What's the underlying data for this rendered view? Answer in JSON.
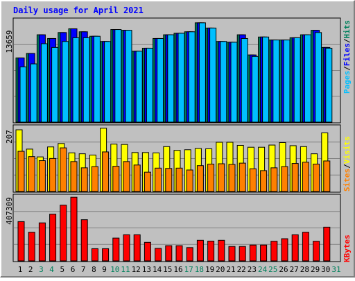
{
  "chart_data": [
    {
      "type": "bar",
      "panel": "hits-files-pages",
      "title": "Daily usage for April 2021",
      "y_max_label": "13659",
      "ylim": [
        0,
        13659
      ],
      "grid": true,
      "days": [
        "1",
        "2",
        "3",
        "4",
        "5",
        "6",
        "7",
        "8",
        "9",
        "10",
        "11",
        "12",
        "13",
        "14",
        "15",
        "16",
        "17",
        "18",
        "19",
        "20",
        "21",
        "22",
        "23",
        "24",
        "25",
        "26",
        "27",
        "28",
        "29",
        "30",
        "31"
      ],
      "weekend_days": [
        "3",
        "4",
        "10",
        "11",
        "17",
        "18",
        "24",
        "25",
        "31"
      ],
      "series": [
        {
          "name": "Hits",
          "color": "#00805c",
          "values": [
            8600,
            9200,
            11700,
            11200,
            12000,
            12500,
            12100,
            11500,
            10800,
            12400,
            12300,
            9500,
            9900,
            11200,
            11700,
            11900,
            12100,
            13300,
            12600,
            10800,
            10700,
            11700,
            9000,
            11400,
            11000,
            11000,
            11300,
            11700,
            12300,
            10000,
            0
          ]
        },
        {
          "name": "Files",
          "color": "#0000ff",
          "values": [
            8600,
            9200,
            11700,
            11200,
            12000,
            12500,
            12100,
            11500,
            10800,
            12400,
            12300,
            9500,
            9900,
            11200,
            11700,
            11900,
            12100,
            13300,
            12600,
            10800,
            10700,
            11700,
            9000,
            11400,
            11000,
            11000,
            11300,
            11700,
            12300,
            10000,
            0
          ]
        },
        {
          "name": "Pages",
          "color": "#00bfff",
          "values": [
            7400,
            7800,
            10500,
            10000,
            10800,
            11300,
            11300,
            11500,
            10800,
            12400,
            12300,
            9500,
            9900,
            11200,
            11700,
            11900,
            12100,
            13300,
            12600,
            10800,
            10700,
            11200,
            8800,
            11400,
            11000,
            11000,
            11300,
            11700,
            12000,
            9900,
            0
          ]
        }
      ],
      "legend": [
        "Pages",
        "Files",
        "Hits"
      ]
    },
    {
      "type": "bar",
      "panel": "visits-sites",
      "y_max_label": "207",
      "ylim": [
        0,
        207
      ],
      "grid": true,
      "series": [
        {
          "name": "Visits",
          "color": "#ffff00",
          "values": [
            198,
            136,
            111,
            143,
            154,
            124,
            121,
            117,
            203,
            152,
            151,
            125,
            125,
            124,
            144,
            132,
            134,
            138,
            137,
            158,
            158,
            148,
            142,
            142,
            149,
            157,
            147,
            144,
            121,
            188,
            0
          ]
        },
        {
          "name": "Sites",
          "color": "#ff8000",
          "values": [
            129,
            112,
            99,
            106,
            140,
            96,
            76,
            80,
            127,
            81,
            96,
            85,
            62,
            75,
            74,
            75,
            69,
            83,
            88,
            89,
            87,
            91,
            73,
            67,
            76,
            80,
            90,
            94,
            88,
            98,
            0
          ]
        }
      ],
      "legend": [
        "Sites",
        "Visits"
      ]
    },
    {
      "type": "bar",
      "panel": "kbytes",
      "y_max_label": "407309",
      "ylim": [
        0,
        407309
      ],
      "grid": true,
      "series": [
        {
          "name": "KBytes",
          "color": "#ff0000",
          "values": [
            248000,
            181000,
            240000,
            295000,
            352000,
            402000,
            260000,
            77000,
            77000,
            144000,
            165000,
            165000,
            117000,
            79000,
            96000,
            96000,
            84000,
            130000,
            125000,
            130000,
            91000,
            91000,
            100000,
            100000,
            124000,
            140000,
            165000,
            181000,
            124000,
            213000,
            0
          ]
        }
      ],
      "legend": [
        "KBytes"
      ]
    }
  ],
  "colors": {
    "background": "#c0c0c0",
    "border": "#000000",
    "title": "#0000ff",
    "weekday_label": "#000000",
    "weekend_label": "#00805c"
  }
}
